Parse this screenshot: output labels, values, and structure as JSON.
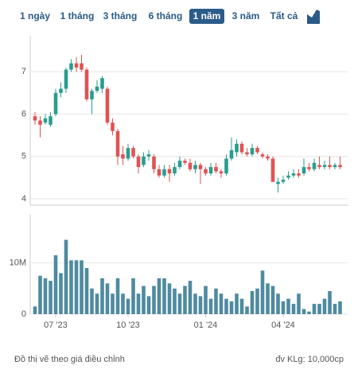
{
  "tabs": {
    "labels": [
      "1 ngày",
      "1 tháng",
      "3 tháng",
      "6 tháng",
      "1 năm",
      "3 năm",
      "Tất cả"
    ],
    "active": 4
  },
  "chart_data": [
    {
      "type": "candlestick",
      "up_color": "#2a9d8f",
      "down_color": "#e05353",
      "open": [
        5.95,
        5.85,
        5.8,
        5.75,
        6.0,
        6.5,
        6.6,
        7.05,
        7.2,
        7.2,
        7.05,
        6.35,
        6.55,
        6.6,
        6.6,
        5.8,
        5.6,
        5.05,
        4.95,
        5.2,
        5.0,
        4.8,
        5.0,
        5.0,
        4.7,
        4.55,
        4.7,
        4.6,
        4.75,
        4.9,
        4.85,
        4.7,
        4.8,
        4.7,
        4.6,
        4.75,
        4.65,
        4.6,
        4.95,
        5.1,
        5.3,
        5.1,
        5.05,
        5.2,
        5.05,
        5.0,
        4.95,
        4.35,
        4.4,
        4.5,
        4.55,
        4.6,
        4.6,
        4.75,
        4.7,
        4.8,
        4.75,
        4.8,
        4.75,
        4.8
      ],
      "high": [
        6.05,
        5.95,
        6.0,
        6.05,
        6.6,
        6.75,
        7.1,
        7.3,
        7.35,
        7.4,
        7.1,
        6.6,
        6.8,
        6.9,
        6.65,
        5.9,
        5.65,
        5.25,
        5.3,
        5.25,
        5.05,
        5.1,
        5.15,
        5.05,
        4.8,
        4.8,
        4.8,
        4.85,
        5.0,
        4.95,
        4.95,
        4.9,
        4.85,
        4.75,
        4.85,
        4.85,
        4.7,
        5.05,
        5.45,
        5.4,
        5.35,
        5.2,
        5.3,
        5.25,
        5.1,
        5.05,
        5.0,
        4.5,
        4.55,
        4.65,
        4.7,
        4.7,
        4.95,
        4.85,
        4.95,
        5.0,
        4.9,
        5.0,
        4.85,
        5.0
      ],
      "low": [
        5.75,
        5.45,
        5.75,
        5.7,
        5.95,
        6.4,
        6.5,
        7.0,
        7.0,
        7.0,
        6.3,
        6.0,
        6.5,
        6.5,
        5.75,
        5.5,
        4.8,
        4.8,
        4.9,
        4.95,
        4.6,
        4.75,
        4.9,
        4.6,
        4.5,
        4.5,
        4.4,
        4.55,
        4.7,
        4.8,
        4.65,
        4.6,
        4.35,
        4.55,
        4.55,
        4.6,
        4.5,
        4.55,
        4.9,
        5.0,
        5.05,
        5.0,
        5.0,
        5.05,
        4.95,
        4.9,
        4.4,
        4.15,
        4.35,
        4.45,
        4.5,
        4.5,
        4.55,
        4.65,
        4.65,
        4.7,
        4.7,
        4.7,
        4.7,
        4.7
      ],
      "close": [
        5.85,
        5.75,
        5.9,
        5.95,
        6.5,
        6.6,
        7.05,
        7.2,
        7.1,
        7.05,
        6.35,
        6.55,
        6.65,
        6.85,
        5.8,
        5.6,
        5.0,
        4.95,
        5.2,
        5.0,
        4.75,
        5.0,
        5.05,
        4.7,
        4.55,
        4.7,
        4.6,
        4.75,
        4.9,
        4.85,
        4.7,
        4.8,
        4.7,
        4.6,
        4.75,
        4.65,
        4.6,
        4.95,
        5.15,
        5.3,
        5.1,
        5.05,
        5.2,
        5.1,
        5.0,
        4.95,
        4.4,
        4.4,
        4.45,
        4.55,
        4.6,
        4.55,
        4.75,
        4.7,
        4.85,
        4.75,
        4.8,
        4.75,
        4.8,
        4.75
      ],
      "ylim": [
        3.85,
        7.85
      ],
      "yticks": [
        4,
        5,
        6,
        7
      ],
      "grid": true
    },
    {
      "type": "bar",
      "color": "#4f8aa0",
      "categories": [
        null,
        null,
        null,
        null,
        "07 '23",
        null,
        null,
        null,
        null,
        null,
        null,
        null,
        null,
        null,
        null,
        null,
        null,
        null,
        "10 '23",
        null,
        null,
        null,
        null,
        null,
        null,
        null,
        null,
        null,
        null,
        null,
        null,
        null,
        null,
        "01 '24",
        null,
        null,
        null,
        null,
        null,
        null,
        null,
        null,
        null,
        null,
        null,
        null,
        null,
        null,
        "04 '24",
        null,
        null,
        null,
        null,
        null,
        null,
        null,
        null,
        null,
        null,
        null
      ],
      "values": [
        1500000,
        7500000,
        7000000,
        6500000,
        11500000,
        8000000,
        14500000,
        10500000,
        10500000,
        10500000,
        9000000,
        5000000,
        4000000,
        7000000,
        6000000,
        4000000,
        7000000,
        4000000,
        3000000,
        7000000,
        4000000,
        5500000,
        3500000,
        5500000,
        7000000,
        7000000,
        6000000,
        5000000,
        4000000,
        5500000,
        6500000,
        4000000,
        3500000,
        5500000,
        3000000,
        5000000,
        4000000,
        3000000,
        2500000,
        4000000,
        3000000,
        1500000,
        4500000,
        5000000,
        8500000,
        6000000,
        5500000,
        4000000,
        2500000,
        3000000,
        2000000,
        4000000,
        1000000,
        500000,
        2000000,
        2000000,
        3000000,
        4500000,
        2000000,
        2500000
      ],
      "ylim": [
        0,
        19400000
      ],
      "yticks": [
        0,
        {
          "value": 10000000,
          "label": "10M"
        }
      ],
      "grid": true
    }
  ],
  "footer": {
    "note": "Đồ thị vẽ theo giá điều chỉnh",
    "unit": "đv KLg: 10,000cp"
  }
}
